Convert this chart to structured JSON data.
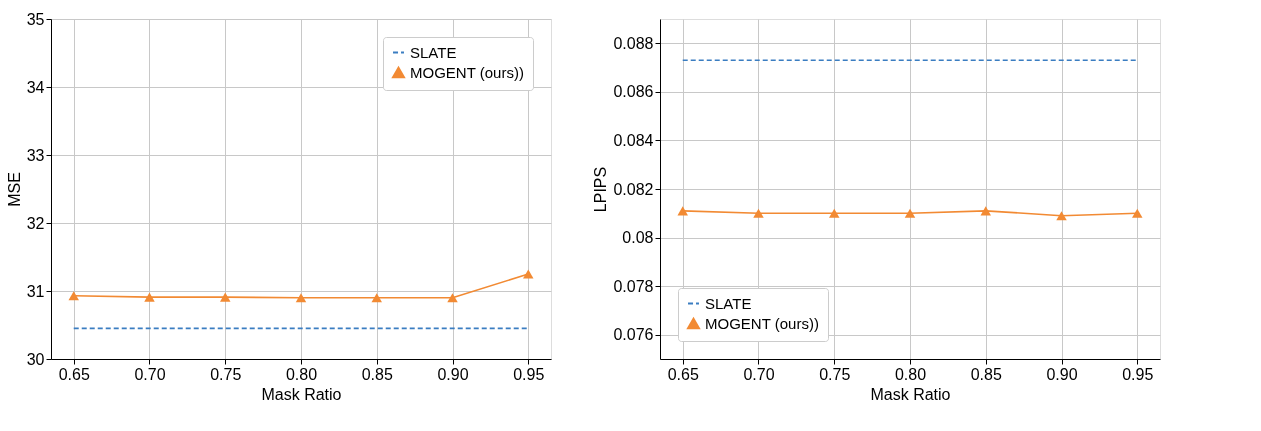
{
  "chart_data": [
    {
      "type": "line",
      "xlabel": "Mask Ratio",
      "ylabel": "MSE",
      "x": [
        0.65,
        0.7,
        0.75,
        0.8,
        0.85,
        0.9,
        0.95
      ],
      "xlim": [
        0.635,
        0.965
      ],
      "xticks": [
        {
          "value": 0.65,
          "label": "0.65"
        },
        {
          "value": 0.7,
          "label": "0.70"
        },
        {
          "value": 0.75,
          "label": "0.75"
        },
        {
          "value": 0.8,
          "label": "0.80"
        },
        {
          "value": 0.85,
          "label": "0.85"
        },
        {
          "value": 0.9,
          "label": "0.90"
        },
        {
          "value": 0.95,
          "label": "0.95"
        }
      ],
      "ylim": [
        30,
        35
      ],
      "yticks": [
        30,
        31,
        32,
        33,
        34,
        35
      ],
      "grid": true,
      "legend": "top right",
      "series": [
        {
          "name": "SLATE",
          "color": "#3a7dc1",
          "line_style": "dashed",
          "marker": "none",
          "values": [
            30.45,
            30.45,
            30.45,
            30.45,
            30.45,
            30.45,
            30.45
          ]
        },
        {
          "name": "MOGENT (ours))",
          "color": "#f28a33",
          "line_style": "solid",
          "marker": "triangle",
          "values": [
            30.93,
            30.91,
            30.91,
            30.9,
            30.9,
            30.9,
            31.25
          ]
        }
      ]
    },
    {
      "type": "line",
      "xlabel": "Mask Ratio",
      "ylabel": "LPIPS",
      "x": [
        0.65,
        0.7,
        0.75,
        0.8,
        0.85,
        0.9,
        0.95
      ],
      "xlim": [
        0.635,
        0.965
      ],
      "xticks": [
        {
          "value": 0.65,
          "label": "0.65"
        },
        {
          "value": 0.7,
          "label": "0.70"
        },
        {
          "value": 0.75,
          "label": "0.75"
        },
        {
          "value": 0.8,
          "label": "0.80"
        },
        {
          "value": 0.85,
          "label": "0.85"
        },
        {
          "value": 0.9,
          "label": "0.90"
        },
        {
          "value": 0.95,
          "label": "0.95"
        }
      ],
      "ylim": [
        0.075,
        0.089
      ],
      "yticks": [
        0.076,
        0.078,
        0.08,
        0.082,
        0.084,
        0.086,
        0.088
      ],
      "grid": true,
      "legend": "bottom left",
      "series": [
        {
          "name": "SLATE",
          "color": "#3a7dc1",
          "line_style": "dashed",
          "marker": "none",
          "values": [
            0.0873,
            0.0873,
            0.0873,
            0.0873,
            0.0873,
            0.0873,
            0.0873
          ]
        },
        {
          "name": "MOGENT (ours))",
          "color": "#f28a33",
          "line_style": "solid",
          "marker": "triangle",
          "values": [
            0.0811,
            0.081,
            0.081,
            0.081,
            0.0811,
            0.0809,
            0.081
          ]
        }
      ]
    }
  ]
}
